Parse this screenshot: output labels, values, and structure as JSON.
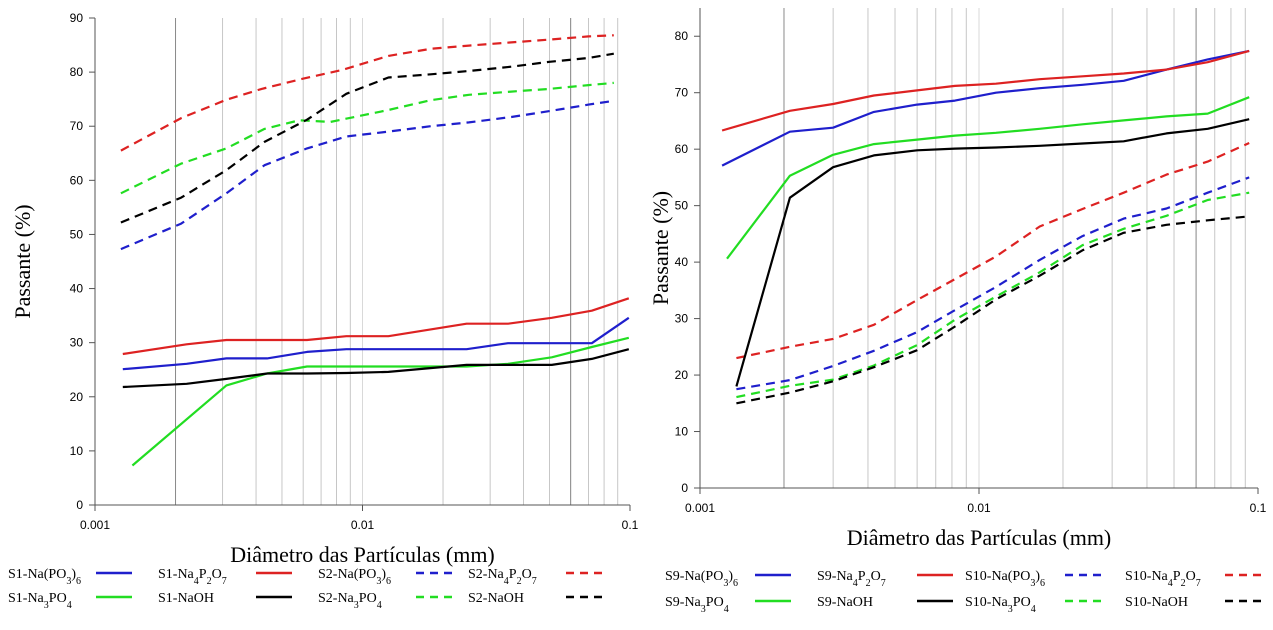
{
  "chart_data": [
    {
      "type": "line",
      "title": "",
      "xlabel": "Diâmetro das Partículas (mm)",
      "ylabel": "Passante (%)",
      "xscale": "log",
      "xlim": [
        0.001,
        0.1
      ],
      "ylim": [
        0,
        90
      ],
      "xticks": [
        {
          "value": 0.001,
          "label": "0.001"
        },
        {
          "value": 0.01,
          "label": "0.01"
        },
        {
          "value": 0.1,
          "label": "0.1"
        }
      ],
      "yticks": [
        0,
        10,
        20,
        30,
        40,
        50,
        60,
        70,
        80,
        90
      ],
      "grid": "vertical log gridlines",
      "legend_position": "bottom",
      "legend_columns": 4,
      "series": [
        {
          "name": "S1-Na(PO3)6",
          "legend": {
            "label": [
              [
                "S1-Na(PO",
                false
              ],
              [
                "3",
                true
              ],
              [
                ")",
                false
              ],
              [
                "6",
                true
              ]
            ]
          },
          "color": "#1f1fcc",
          "dash": "solid",
          "x": [
            0.00127,
            0.0022,
            0.0031,
            0.0044,
            0.0062,
            0.0087,
            0.0125,
            0.0245,
            0.035,
            0.051,
            0.072,
            0.099
          ],
          "y": [
            25.1,
            26.1,
            27.1,
            27.1,
            28.3,
            28.8,
            28.8,
            28.8,
            29.9,
            29.9,
            29.9,
            34.6
          ]
        },
        {
          "name": "S1-Na4P2O7",
          "legend": {
            "label": [
              [
                "S1-Na",
                false
              ],
              [
                "4",
                true
              ],
              [
                "P",
                false
              ],
              [
                "2",
                true
              ],
              [
                "O",
                false
              ],
              [
                "7",
                true
              ]
            ]
          },
          "color": "#dd2222",
          "dash": "solid",
          "x": [
            0.00127,
            0.0022,
            0.0031,
            0.0044,
            0.0062,
            0.0087,
            0.0125,
            0.0245,
            0.035,
            0.051,
            0.072,
            0.099
          ],
          "y": [
            27.9,
            29.7,
            30.5,
            30.5,
            30.5,
            31.2,
            31.2,
            33.5,
            33.5,
            34.6,
            35.9,
            38.2
          ]
        },
        {
          "name": "S2-Na(PO3)6",
          "legend": {
            "label": [
              [
                "S2-Na(PO",
                false
              ],
              [
                "3",
                true
              ],
              [
                ")",
                false
              ],
              [
                "6",
                true
              ]
            ]
          },
          "color": "#1f1fcc",
          "dash": "dashed",
          "x": [
            0.00125,
            0.0021,
            0.0031,
            0.0043,
            0.0062,
            0.0087,
            0.0125,
            0.018,
            0.025,
            0.036,
            0.05,
            0.07,
            0.087
          ],
          "y": [
            47.3,
            52.0,
            57.6,
            62.8,
            65.9,
            68.1,
            69.0,
            70.0,
            70.7,
            71.7,
            72.8,
            74.0,
            74.7
          ]
        },
        {
          "name": "S2-Na4P2O7",
          "legend": {
            "label": [
              [
                "S2-Na",
                false
              ],
              [
                "4",
                true
              ],
              [
                "P",
                false
              ],
              [
                "2",
                true
              ],
              [
                "O",
                false
              ],
              [
                "7",
                true
              ]
            ]
          },
          "color": "#dd2222",
          "dash": "dashed",
          "x": [
            0.00125,
            0.0021,
            0.0031,
            0.0042,
            0.0059,
            0.0084,
            0.0125,
            0.018,
            0.025,
            0.036,
            0.05,
            0.07,
            0.087
          ],
          "y": [
            65.5,
            71.5,
            74.9,
            76.9,
            78.7,
            80.4,
            83.0,
            84.3,
            84.9,
            85.5,
            86.0,
            86.6,
            86.8
          ]
        },
        {
          "name": "S1-Na3PO4",
          "legend": {
            "label": [
              [
                "S1-Na",
                false
              ],
              [
                "3",
                true
              ],
              [
                "PO",
                false
              ],
              [
                "4",
                true
              ]
            ]
          },
          "color": "#22dd22",
          "dash": "solid",
          "x": [
            0.00138,
            0.0031,
            0.0044,
            0.0062,
            0.0087,
            0.0125,
            0.0245,
            0.035,
            0.051,
            0.072,
            0.099
          ],
          "y": [
            7.3,
            22.1,
            24.3,
            25.6,
            25.6,
            25.6,
            25.6,
            26.1,
            27.3,
            29.2,
            30.9
          ]
        },
        {
          "name": "S1-NaOH",
          "legend": {
            "label": [
              [
                "S1-NaOH",
                false
              ]
            ]
          },
          "color": "#000000",
          "dash": "solid",
          "x": [
            0.00127,
            0.0022,
            0.0031,
            0.0044,
            0.0062,
            0.0087,
            0.0125,
            0.0245,
            0.035,
            0.051,
            0.072,
            0.099
          ],
          "y": [
            21.8,
            22.4,
            23.3,
            24.3,
            24.3,
            24.4,
            24.6,
            25.9,
            25.9,
            25.9,
            27.0,
            28.8
          ]
        },
        {
          "name": "S2-Na3PO4",
          "legend": {
            "label": [
              [
                "S2-Na",
                false
              ],
              [
                "3",
                true
              ],
              [
                "PO",
                false
              ],
              [
                "4",
                true
              ]
            ]
          },
          "color": "#22dd22",
          "dash": "dashed",
          "x": [
            0.00125,
            0.0021,
            0.0031,
            0.0043,
            0.0058,
            0.0076,
            0.0125,
            0.018,
            0.025,
            0.036,
            0.05,
            0.07,
            0.087
          ],
          "y": [
            57.6,
            63.1,
            65.9,
            69.5,
            71.1,
            70.8,
            73.0,
            74.8,
            75.8,
            76.4,
            76.9,
            77.6,
            78.0
          ]
        },
        {
          "name": "S2-NaOH",
          "legend": {
            "label": [
              [
                "S2-NaOH",
                false
              ]
            ]
          },
          "color": "#000000",
          "dash": "dashed",
          "x": [
            0.00125,
            0.0021,
            0.0031,
            0.0043,
            0.0062,
            0.0087,
            0.0125,
            0.018,
            0.025,
            0.036,
            0.05,
            0.07,
            0.087
          ],
          "y": [
            52.2,
            56.8,
            61.9,
            67.1,
            71.2,
            76.0,
            79.0,
            79.6,
            80.2,
            81.0,
            81.9,
            82.6,
            83.4
          ]
        }
      ]
    },
    {
      "type": "line",
      "title": "",
      "xlabel": "Diâmetro das Partículas (mm)",
      "ylabel": "Passante (%)",
      "xscale": "log",
      "xlim": [
        0.001,
        0.1
      ],
      "ylim": [
        0,
        85
      ],
      "xticks": [
        {
          "value": 0.001,
          "label": "0.001"
        },
        {
          "value": 0.01,
          "label": "0.01"
        },
        {
          "value": 0.1,
          "label": "0.1"
        }
      ],
      "yticks": [
        0,
        10,
        20,
        30,
        40,
        50,
        60,
        70,
        80
      ],
      "grid": "vertical log gridlines",
      "legend_position": "bottom",
      "legend_columns": 4,
      "series": [
        {
          "name": "S9-Na(PO3)6",
          "legend": {
            "label": [
              [
                "S9-Na(PO",
                false
              ],
              [
                "3",
                true
              ],
              [
                ")",
                false
              ],
              [
                "6",
                true
              ]
            ]
          },
          "color": "#1f1fcc",
          "dash": "solid",
          "x": [
            0.0012,
            0.0021,
            0.003,
            0.0042,
            0.006,
            0.0082,
            0.0115,
            0.0165,
            0.0235,
            0.033,
            0.047,
            0.066,
            0.093
          ],
          "y": [
            57.1,
            63.1,
            63.8,
            66.6,
            67.9,
            68.6,
            70.0,
            70.8,
            71.4,
            72.1,
            74.1,
            75.9,
            77.4
          ]
        },
        {
          "name": "S9-Na4P2O7",
          "legend": {
            "label": [
              [
                "S9-Na",
                false
              ],
              [
                "4",
                true
              ],
              [
                "P",
                false
              ],
              [
                "2",
                true
              ],
              [
                "O",
                false
              ],
              [
                "7",
                true
              ]
            ]
          },
          "color": "#dd2222",
          "dash": "solid",
          "x": [
            0.0012,
            0.0021,
            0.003,
            0.0042,
            0.006,
            0.0082,
            0.0115,
            0.0165,
            0.0235,
            0.033,
            0.047,
            0.066,
            0.093
          ],
          "y": [
            63.3,
            66.8,
            68.0,
            69.5,
            70.4,
            71.2,
            71.6,
            72.4,
            72.9,
            73.4,
            74.1,
            75.4,
            77.4
          ]
        },
        {
          "name": "S10-Na(PO3)6",
          "legend": {
            "label": [
              [
                "S10-Na(PO",
                false
              ],
              [
                "3",
                true
              ],
              [
                ")",
                false
              ],
              [
                "6",
                true
              ]
            ]
          },
          "color": "#1f1fcc",
          "dash": "dashed",
          "x": [
            0.00135,
            0.0021,
            0.003,
            0.0042,
            0.006,
            0.0082,
            0.0115,
            0.0165,
            0.0235,
            0.033,
            0.047,
            0.066,
            0.093
          ],
          "y": [
            17.5,
            19.1,
            21.6,
            24.3,
            27.6,
            31.5,
            35.6,
            40.4,
            44.6,
            47.7,
            49.5,
            52.3,
            55.0
          ]
        },
        {
          "name": "S10-Na4P2O7",
          "legend": {
            "label": [
              [
                "S10-Na",
                false
              ],
              [
                "4",
                true
              ],
              [
                "P",
                false
              ],
              [
                "2",
                true
              ],
              [
                "O",
                false
              ],
              [
                "7",
                true
              ]
            ]
          },
          "color": "#dd2222",
          "dash": "dashed",
          "x": [
            0.00135,
            0.0021,
            0.003,
            0.0042,
            0.006,
            0.0082,
            0.0115,
            0.0165,
            0.0235,
            0.033,
            0.047,
            0.066,
            0.093
          ],
          "y": [
            23.0,
            25.0,
            26.4,
            28.9,
            33.3,
            37.0,
            41.0,
            46.3,
            49.4,
            52.3,
            55.5,
            57.8,
            61.1
          ]
        },
        {
          "name": "S9-Na3PO4",
          "legend": {
            "label": [
              [
                "S9-Na",
                false
              ],
              [
                "3",
                true
              ],
              [
                "PO",
                false
              ],
              [
                "4",
                true
              ]
            ]
          },
          "color": "#22dd22",
          "dash": "solid",
          "x": [
            0.00125,
            0.0021,
            0.003,
            0.0042,
            0.006,
            0.0082,
            0.0115,
            0.0165,
            0.0235,
            0.033,
            0.047,
            0.066,
            0.093
          ],
          "y": [
            40.6,
            55.3,
            59.0,
            60.9,
            61.7,
            62.4,
            62.9,
            63.6,
            64.4,
            65.1,
            65.8,
            66.3,
            69.2
          ]
        },
        {
          "name": "S9-NaOH",
          "legend": {
            "label": [
              [
                "S9-NaOH",
                false
              ]
            ]
          },
          "color": "#000000",
          "dash": "solid",
          "x": [
            0.00135,
            0.0021,
            0.003,
            0.0042,
            0.006,
            0.0082,
            0.0115,
            0.0165,
            0.0235,
            0.033,
            0.047,
            0.066,
            0.093
          ],
          "y": [
            18.0,
            51.4,
            56.8,
            58.9,
            59.8,
            60.1,
            60.3,
            60.6,
            61.0,
            61.4,
            62.8,
            63.6,
            65.3
          ]
        },
        {
          "name": "S10-Na3PO4",
          "legend": {
            "label": [
              [
                "S10-Na",
                false
              ],
              [
                "3",
                true
              ],
              [
                "PO",
                false
              ],
              [
                "4",
                true
              ]
            ]
          },
          "color": "#22dd22",
          "dash": "dashed",
          "x": [
            0.00135,
            0.0021,
            0.003,
            0.0042,
            0.006,
            0.0082,
            0.0115,
            0.0165,
            0.0235,
            0.033,
            0.047,
            0.066,
            0.093
          ],
          "y": [
            16.1,
            18.1,
            19.2,
            21.7,
            25.3,
            29.8,
            33.9,
            38.2,
            43.0,
            45.9,
            48.2,
            51.0,
            52.3
          ]
        },
        {
          "name": "S10-NaOH",
          "legend": {
            "label": [
              [
                "S10-NaOH",
                false
              ]
            ]
          },
          "color": "#000000",
          "dash": "dashed",
          "x": [
            0.00135,
            0.0021,
            0.003,
            0.0042,
            0.006,
            0.0082,
            0.0115,
            0.0165,
            0.0235,
            0.033,
            0.047,
            0.066,
            0.093
          ],
          "y": [
            15.0,
            16.9,
            18.9,
            21.4,
            24.4,
            28.6,
            33.4,
            37.6,
            42.1,
            45.2,
            46.6,
            47.4,
            48.1
          ]
        }
      ]
    }
  ]
}
